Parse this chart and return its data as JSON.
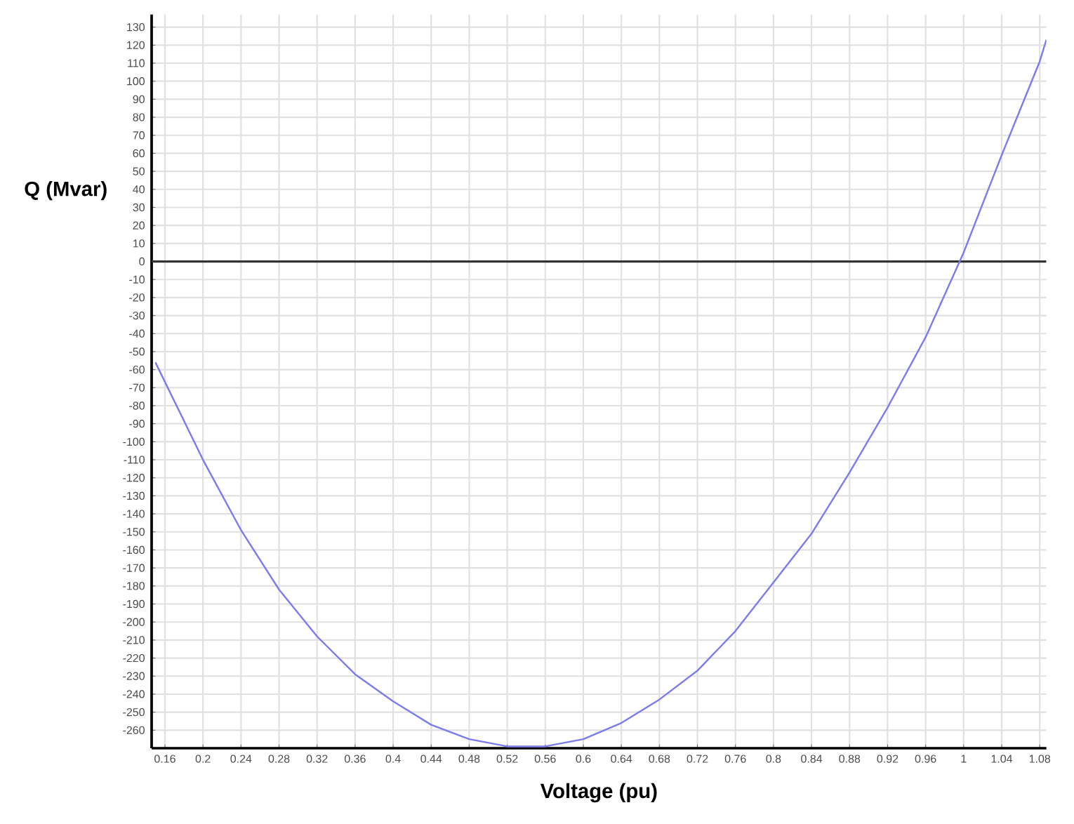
{
  "chart_data": {
    "type": "line",
    "xlabel": "Voltage (pu)",
    "ylabel": "Q (Mvar)",
    "x": [
      0.15,
      0.2,
      0.24,
      0.28,
      0.32,
      0.36,
      0.4,
      0.44,
      0.48,
      0.52,
      0.56,
      0.6,
      0.64,
      0.68,
      0.72,
      0.76,
      0.8,
      0.84,
      0.88,
      0.92,
      0.96,
      1.0,
      1.04,
      1.08,
      1.087
    ],
    "series": [
      {
        "color": "#7b7bf0",
        "values": [
          -56,
          -110,
          -149,
          -182,
          -208,
          -229,
          -244,
          -257,
          -265,
          -269,
          -269,
          -265,
          -256,
          -243,
          -227,
          -205,
          -178,
          -151,
          -117,
          -81,
          -42,
          5,
          59,
          111,
          123
        ]
      }
    ],
    "xlim": [
      0.146,
      1.087
    ],
    "ylim": [
      -270,
      137
    ],
    "xticks": [
      0.16,
      0.2,
      0.24,
      0.28,
      0.32,
      0.36,
      0.4,
      0.44,
      0.48,
      0.52,
      0.56,
      0.6,
      0.64,
      0.68,
      0.72,
      0.76,
      0.8,
      0.84,
      0.88,
      0.92,
      0.96,
      1,
      1.04,
      1.08
    ],
    "yticks": [
      -260,
      -250,
      -240,
      -230,
      -220,
      -210,
      -200,
      -190,
      -180,
      -170,
      -160,
      -150,
      -140,
      -130,
      -120,
      -110,
      -100,
      -90,
      -80,
      -70,
      -60,
      -50,
      -40,
      -30,
      -20,
      -10,
      0,
      10,
      20,
      30,
      40,
      50,
      60,
      70,
      80,
      90,
      100,
      110,
      120,
      130
    ],
    "ref_lines": [
      {
        "axis": "y",
        "value": 0,
        "color": "#333333"
      }
    ],
    "grid": true,
    "marker": "none",
    "line_style": "solid"
  }
}
